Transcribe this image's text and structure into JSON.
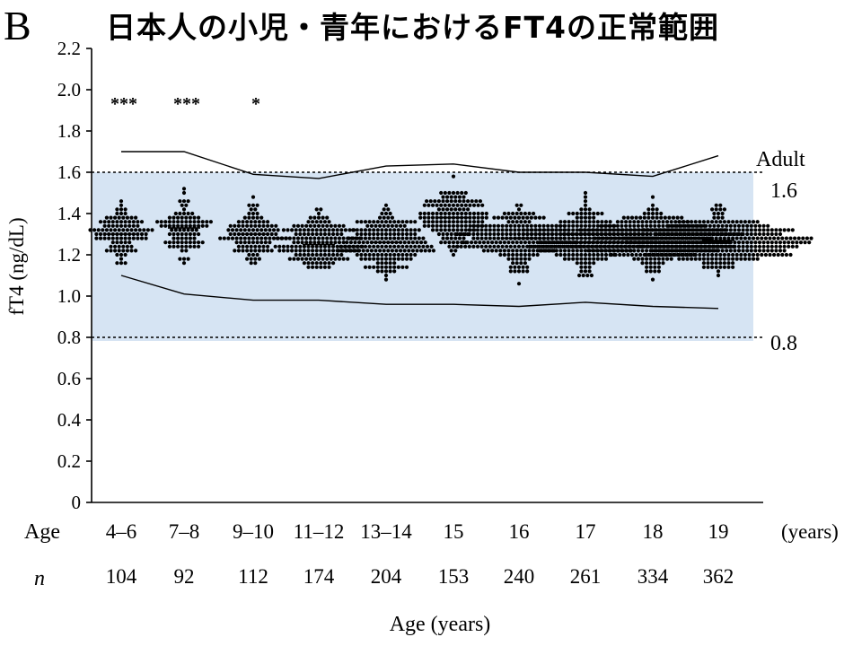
{
  "panel_label": "B",
  "title": "日本人の小児・青年におけるFT4の正常範囲",
  "chart_data": {
    "type": "scatter",
    "subtype": "beeswarm-dot-plot",
    "title": "日本人の小児・青年におけるFT4の正常範囲",
    "ylabel": "fT4 (ng/dL)",
    "xlabel": "Age (years)",
    "ylim": [
      0,
      2.2
    ],
    "yticks": [
      "0",
      "0.2",
      "0.4",
      "0.6",
      "0.8",
      "1.0",
      "1.2",
      "1.4",
      "1.6",
      "1.8",
      "2.0",
      "2.2"
    ],
    "yticks_values": [
      0,
      0.2,
      0.4,
      0.6,
      0.8,
      1.0,
      1.2,
      1.4,
      1.6,
      1.8,
      2.0,
      2.2
    ],
    "grid": false,
    "row_labels": {
      "age": "Age",
      "n": "n",
      "unit": "(years)"
    },
    "categories": [
      "4–6",
      "7–8",
      "9–10",
      "11–12",
      "13–14",
      "15",
      "16",
      "17",
      "18",
      "19"
    ],
    "n": [
      104,
      92,
      112,
      174,
      204,
      153,
      240,
      261,
      334,
      362
    ],
    "medians": [
      1.3,
      1.33,
      1.3,
      1.25,
      1.26,
      1.38,
      1.28,
      1.28,
      1.28,
      1.27
    ],
    "significance": [
      "***",
      "***",
      "*",
      "",
      "",
      "",
      "",
      "",
      "",
      ""
    ],
    "upper_limit_line": [
      1.7,
      1.7,
      1.59,
      1.57,
      1.63,
      1.64,
      1.6,
      1.6,
      1.58,
      1.68
    ],
    "lower_limit_line": [
      1.1,
      1.01,
      0.98,
      0.98,
      0.96,
      0.96,
      0.95,
      0.97,
      0.95,
      0.94
    ],
    "adult_range": {
      "label": "Adult",
      "upper": 1.6,
      "lower": 0.8,
      "upper_label": "1.6",
      "lower_label": "0.8"
    },
    "colors": {
      "band": "#d6e4f3",
      "dots": "#000000",
      "lines": "#000000"
    }
  }
}
